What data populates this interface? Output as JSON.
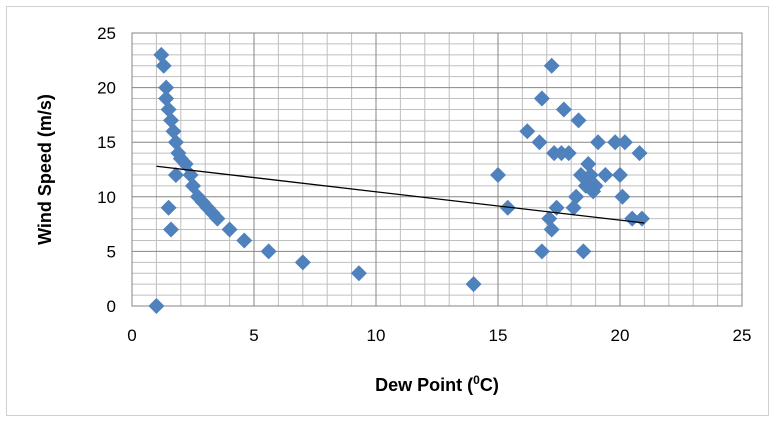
{
  "chart_data": {
    "type": "scatter",
    "title": "",
    "xlabel": "Dew Point (",
    "xlabel_sup": "0",
    "xlabel_suffix": "C)",
    "ylabel": "Wind Speed (m/s)",
    "xlim": [
      0,
      25
    ],
    "ylim": [
      0,
      25
    ],
    "x_ticks": [
      0,
      5,
      10,
      15,
      20,
      25
    ],
    "y_ticks": [
      0,
      5,
      10,
      15,
      20,
      25
    ],
    "grid": true,
    "marker_color": "#4f81bd",
    "trendline_color": "#000000",
    "series": [
      {
        "points": [
          [
            1.0,
            0
          ],
          [
            1.2,
            23
          ],
          [
            1.3,
            22
          ],
          [
            1.4,
            20
          ],
          [
            1.4,
            19
          ],
          [
            1.5,
            18
          ],
          [
            1.6,
            17
          ],
          [
            1.7,
            16
          ],
          [
            1.8,
            15
          ],
          [
            1.9,
            14
          ],
          [
            2.0,
            13.5
          ],
          [
            2.2,
            13
          ],
          [
            2.4,
            12
          ],
          [
            2.5,
            11
          ],
          [
            2.7,
            10
          ],
          [
            2.9,
            9.5
          ],
          [
            3.1,
            9
          ],
          [
            3.3,
            8.5
          ],
          [
            3.5,
            8
          ],
          [
            4.0,
            7
          ],
          [
            4.6,
            6
          ],
          [
            5.6,
            5
          ],
          [
            7.0,
            4
          ],
          [
            9.3,
            3
          ],
          [
            14.0,
            2
          ],
          [
            1.5,
            9
          ],
          [
            1.6,
            7
          ],
          [
            1.8,
            12
          ],
          [
            15.0,
            12
          ],
          [
            15.4,
            9
          ],
          [
            16.2,
            16
          ],
          [
            16.7,
            15
          ],
          [
            16.8,
            19
          ],
          [
            16.8,
            5
          ],
          [
            17.1,
            8
          ],
          [
            17.2,
            7
          ],
          [
            17.2,
            22
          ],
          [
            17.3,
            14
          ],
          [
            17.4,
            9
          ],
          [
            17.6,
            14
          ],
          [
            17.7,
            18
          ],
          [
            17.9,
            14
          ],
          [
            18.1,
            9
          ],
          [
            18.2,
            10
          ],
          [
            18.3,
            17
          ],
          [
            18.4,
            12
          ],
          [
            18.5,
            5
          ],
          [
            18.6,
            11
          ],
          [
            18.7,
            13
          ],
          [
            18.8,
            12
          ],
          [
            18.9,
            10.5
          ],
          [
            19.0,
            11
          ],
          [
            19.1,
            15
          ],
          [
            19.4,
            12
          ],
          [
            19.8,
            15
          ],
          [
            20.0,
            12
          ],
          [
            20.1,
            10
          ],
          [
            20.2,
            15
          ],
          [
            20.5,
            8
          ],
          [
            20.8,
            14
          ],
          [
            20.9,
            8
          ]
        ]
      }
    ],
    "trendline": {
      "x": [
        1.0,
        21.0
      ],
      "y": [
        12.8,
        7.6
      ]
    }
  }
}
